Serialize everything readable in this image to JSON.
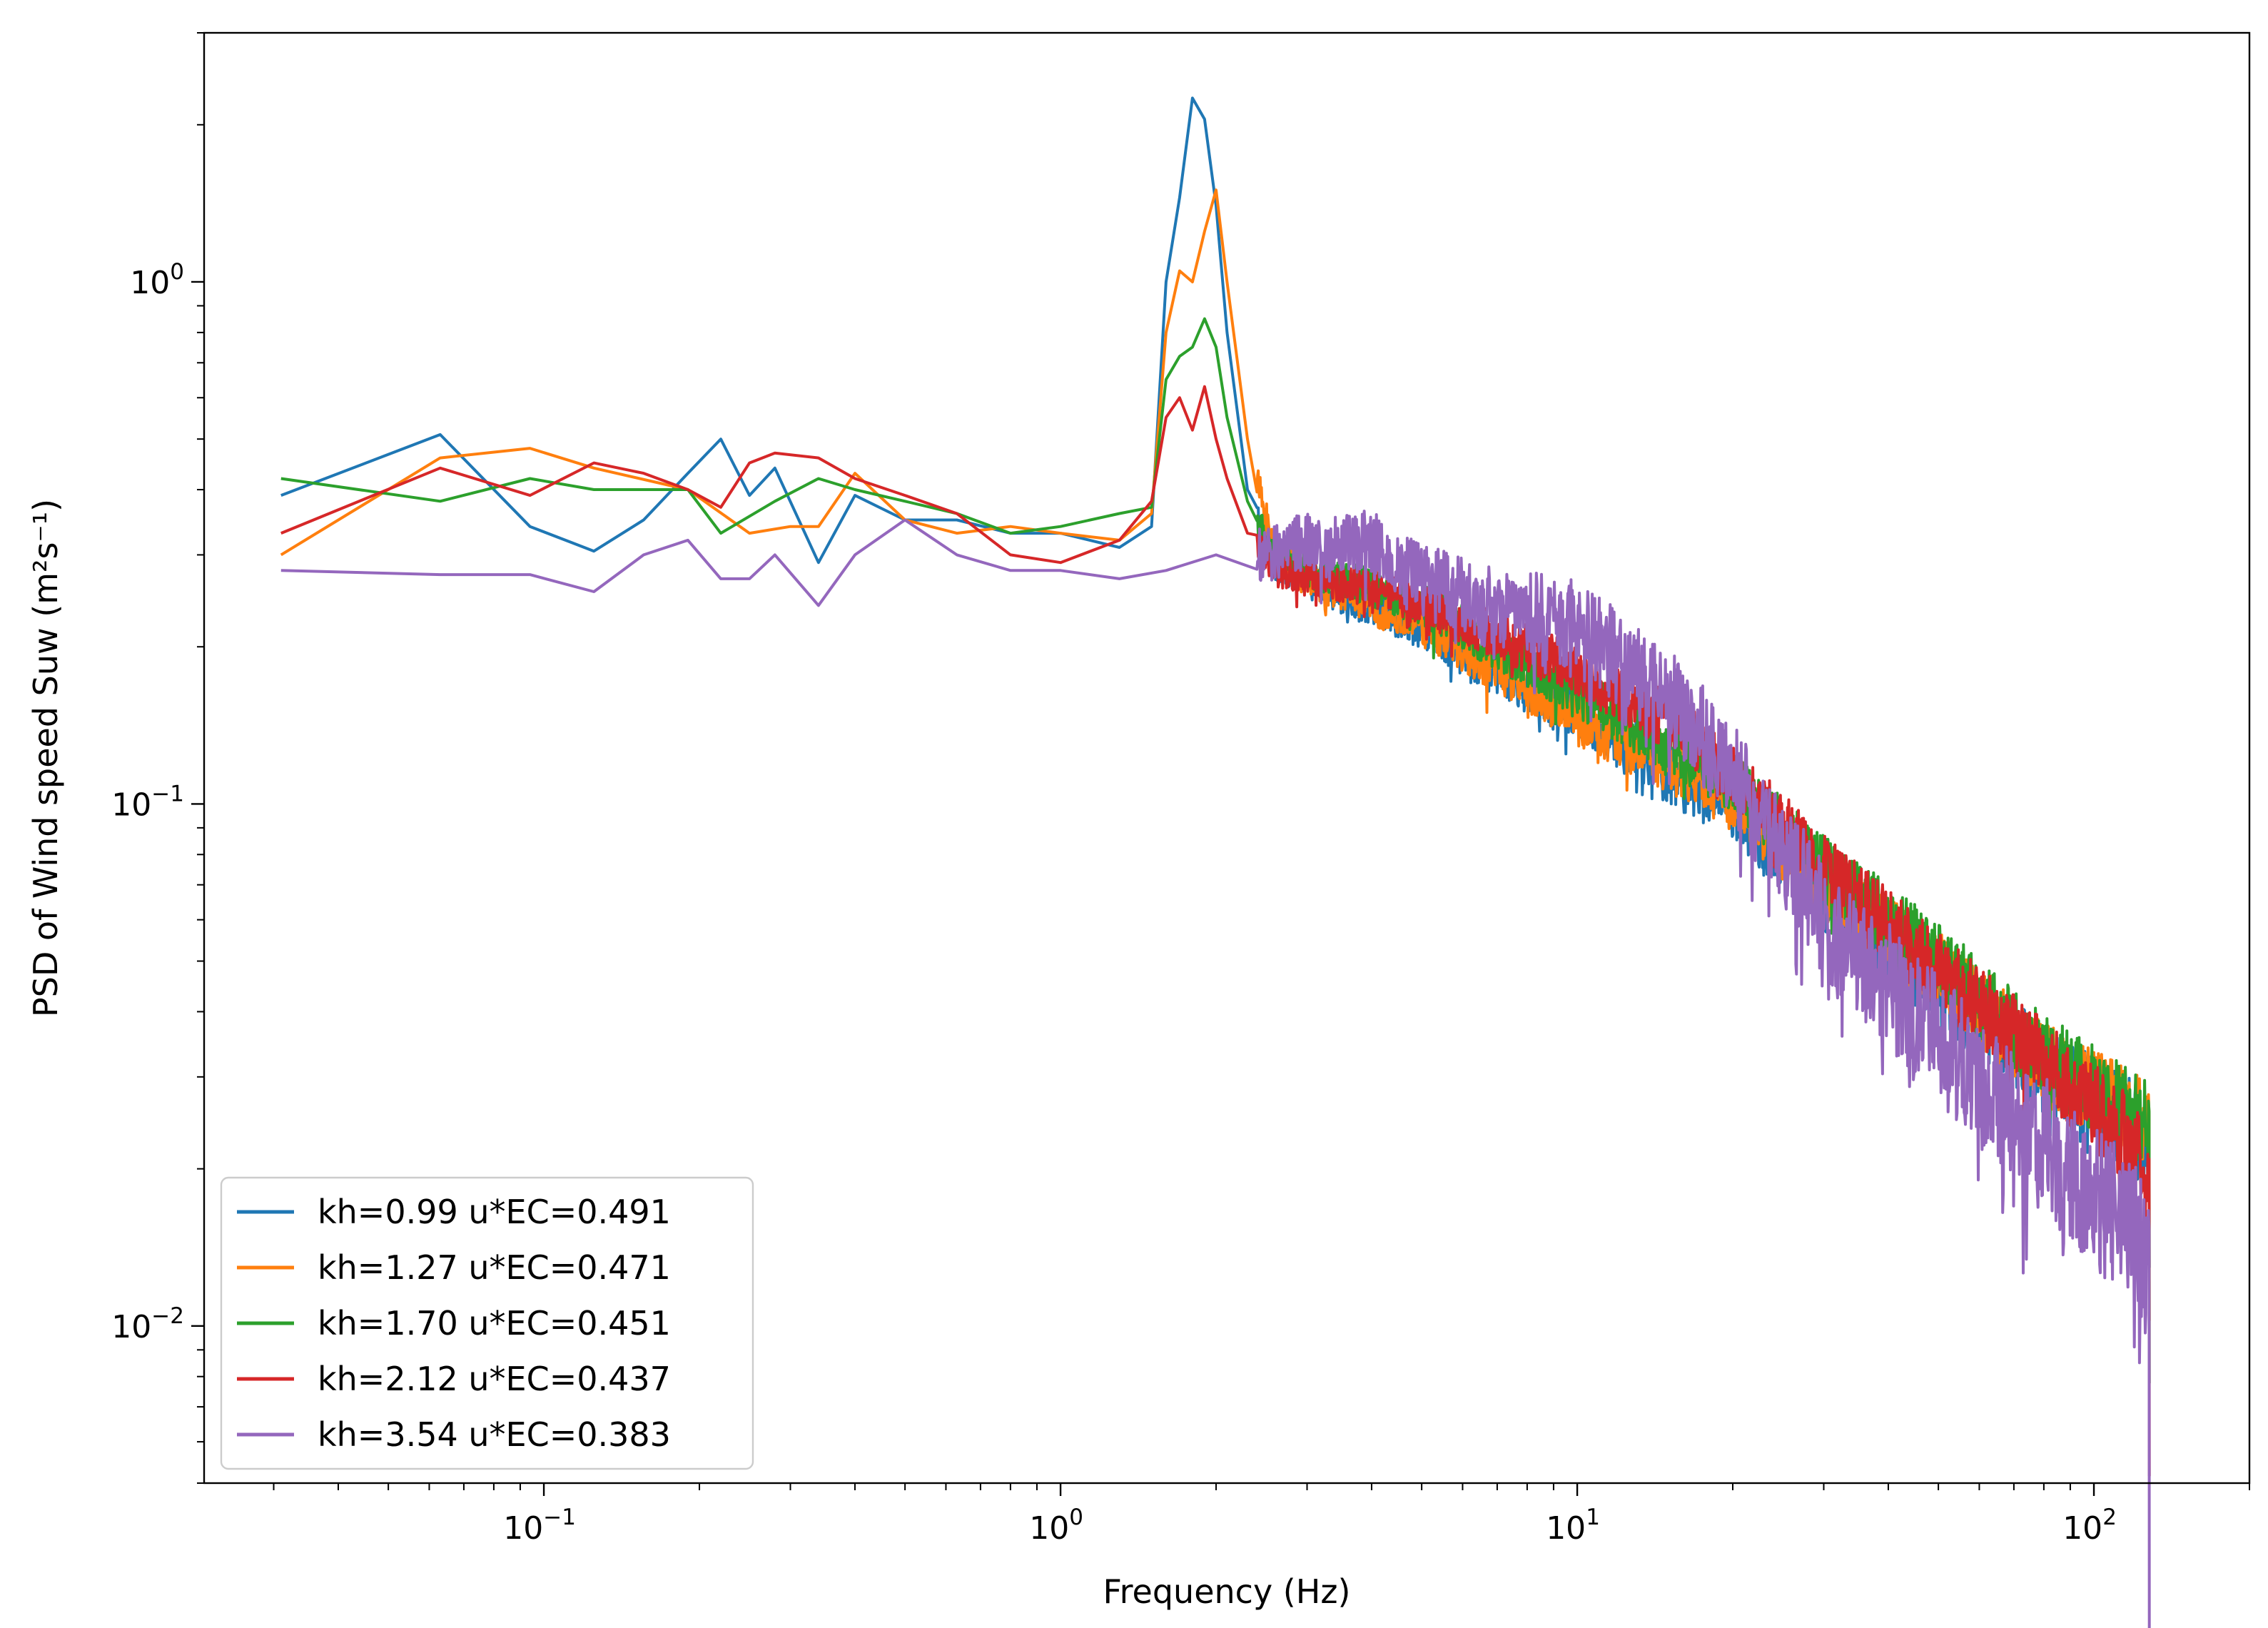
{
  "chart_data": {
    "type": "line",
    "title": "",
    "xlabel": "Frequency (Hz)",
    "ylabel": "PSD of Wind speed Suw (m²s⁻¹)",
    "xscale": "log",
    "yscale": "log",
    "xlim": [
      0.022,
      200
    ],
    "ylim": [
      0.005,
      3.0
    ],
    "grid": false,
    "legend_position": "lower-left",
    "x_ticks": [
      {
        "value": 0.1,
        "mantissa": "10",
        "exponent": "−1"
      },
      {
        "value": 1,
        "mantissa": "10",
        "exponent": "0"
      },
      {
        "value": 10,
        "mantissa": "10",
        "exponent": "1"
      },
      {
        "value": 100,
        "mantissa": "10",
        "exponent": "2"
      }
    ],
    "y_ticks": [
      {
        "value": 0.01,
        "mantissa": "10",
        "exponent": "−2"
      },
      {
        "value": 0.1,
        "mantissa": "10",
        "exponent": "−1"
      },
      {
        "value": 1,
        "mantissa": "10",
        "exponent": "0"
      }
    ],
    "series": [
      {
        "name": "kh=0.99 u*EC=0.491",
        "color": "#1f77b4",
        "points": [
          [
            0.031,
            0.39
          ],
          [
            0.063,
            0.51
          ],
          [
            0.094,
            0.34
          ],
          [
            0.125,
            0.305
          ],
          [
            0.156,
            0.35
          ],
          [
            0.19,
            0.43
          ],
          [
            0.22,
            0.5
          ],
          [
            0.25,
            0.39
          ],
          [
            0.28,
            0.44
          ],
          [
            0.34,
            0.29
          ],
          [
            0.4,
            0.39
          ],
          [
            0.5,
            0.35
          ],
          [
            0.63,
            0.35
          ],
          [
            0.8,
            0.33
          ],
          [
            1.0,
            0.33
          ],
          [
            1.3,
            0.31
          ],
          [
            1.5,
            0.34
          ],
          [
            1.6,
            1.0
          ],
          [
            1.7,
            1.45
          ],
          [
            1.8,
            2.25
          ],
          [
            1.9,
            2.05
          ],
          [
            2.0,
            1.4
          ],
          [
            2.1,
            0.8
          ],
          [
            2.3,
            0.4
          ],
          [
            2.6,
            0.29
          ],
          [
            3.0,
            0.27
          ],
          [
            4.0,
            0.24
          ],
          [
            5.0,
            0.22
          ],
          [
            7.0,
            0.18
          ],
          [
            10.0,
            0.15
          ],
          [
            15.0,
            0.115
          ],
          [
            20.0,
            0.1
          ],
          [
            30.0,
            0.066
          ],
          [
            50.0,
            0.045
          ],
          [
            80.0,
            0.031
          ],
          [
            128.0,
            0.023
          ]
        ],
        "noise": 0.55,
        "drop": 0.05
      },
      {
        "name": "kh=1.27 u*EC=0.471",
        "color": "#ff7f0e",
        "points": [
          [
            0.031,
            0.3
          ],
          [
            0.063,
            0.46
          ],
          [
            0.094,
            0.48
          ],
          [
            0.125,
            0.44
          ],
          [
            0.19,
            0.4
          ],
          [
            0.25,
            0.33
          ],
          [
            0.3,
            0.34
          ],
          [
            0.34,
            0.34
          ],
          [
            0.4,
            0.43
          ],
          [
            0.5,
            0.35
          ],
          [
            0.63,
            0.33
          ],
          [
            0.8,
            0.34
          ],
          [
            1.0,
            0.33
          ],
          [
            1.3,
            0.32
          ],
          [
            1.5,
            0.36
          ],
          [
            1.6,
            0.8
          ],
          [
            1.7,
            1.05
          ],
          [
            1.8,
            1.0
          ],
          [
            1.9,
            1.25
          ],
          [
            2.0,
            1.5
          ],
          [
            2.1,
            1.0
          ],
          [
            2.3,
            0.5
          ],
          [
            2.6,
            0.3
          ],
          [
            3.0,
            0.27
          ],
          [
            4.0,
            0.24
          ],
          [
            5.0,
            0.22
          ],
          [
            7.0,
            0.18
          ],
          [
            10.0,
            0.145
          ],
          [
            15.0,
            0.12
          ],
          [
            20.0,
            0.102
          ],
          [
            30.0,
            0.07
          ],
          [
            50.0,
            0.048
          ],
          [
            80.0,
            0.032
          ],
          [
            128.0,
            0.024
          ]
        ],
        "noise": 0.5,
        "drop": 0.05
      },
      {
        "name": "kh=1.70 u*EC=0.451",
        "color": "#2ca02c",
        "points": [
          [
            0.031,
            0.42
          ],
          [
            0.063,
            0.38
          ],
          [
            0.094,
            0.42
          ],
          [
            0.125,
            0.4
          ],
          [
            0.19,
            0.4
          ],
          [
            0.22,
            0.33
          ],
          [
            0.28,
            0.38
          ],
          [
            0.34,
            0.42
          ],
          [
            0.4,
            0.4
          ],
          [
            0.5,
            0.38
          ],
          [
            0.63,
            0.36
          ],
          [
            0.8,
            0.33
          ],
          [
            1.0,
            0.34
          ],
          [
            1.3,
            0.36
          ],
          [
            1.5,
            0.37
          ],
          [
            1.6,
            0.65
          ],
          [
            1.7,
            0.72
          ],
          [
            1.8,
            0.75
          ],
          [
            1.9,
            0.85
          ],
          [
            2.0,
            0.75
          ],
          [
            2.1,
            0.55
          ],
          [
            2.3,
            0.38
          ],
          [
            2.6,
            0.3
          ],
          [
            3.0,
            0.28
          ],
          [
            4.0,
            0.26
          ],
          [
            5.0,
            0.24
          ],
          [
            7.0,
            0.2
          ],
          [
            10.0,
            0.165
          ],
          [
            15.0,
            0.13
          ],
          [
            20.0,
            0.11
          ],
          [
            30.0,
            0.075
          ],
          [
            50.0,
            0.05
          ],
          [
            80.0,
            0.033
          ],
          [
            128.0,
            0.024
          ]
        ],
        "noise": 0.5,
        "drop": 0.05
      },
      {
        "name": "kh=2.12 u*EC=0.437",
        "color": "#d62728",
        "points": [
          [
            0.031,
            0.33
          ],
          [
            0.063,
            0.44
          ],
          [
            0.094,
            0.39
          ],
          [
            0.125,
            0.45
          ],
          [
            0.156,
            0.43
          ],
          [
            0.19,
            0.4
          ],
          [
            0.22,
            0.37
          ],
          [
            0.25,
            0.45
          ],
          [
            0.28,
            0.47
          ],
          [
            0.34,
            0.46
          ],
          [
            0.4,
            0.42
          ],
          [
            0.5,
            0.39
          ],
          [
            0.63,
            0.36
          ],
          [
            0.8,
            0.3
          ],
          [
            1.0,
            0.29
          ],
          [
            1.3,
            0.32
          ],
          [
            1.5,
            0.38
          ],
          [
            1.6,
            0.55
          ],
          [
            1.7,
            0.6
          ],
          [
            1.8,
            0.52
          ],
          [
            1.9,
            0.63
          ],
          [
            2.0,
            0.5
          ],
          [
            2.1,
            0.42
          ],
          [
            2.3,
            0.33
          ],
          [
            2.6,
            0.28
          ],
          [
            3.0,
            0.27
          ],
          [
            4.0,
            0.26
          ],
          [
            5.0,
            0.24
          ],
          [
            7.0,
            0.21
          ],
          [
            10.0,
            0.18
          ],
          [
            15.0,
            0.145
          ],
          [
            20.0,
            0.115
          ],
          [
            30.0,
            0.075
          ],
          [
            50.0,
            0.048
          ],
          [
            80.0,
            0.032
          ],
          [
            128.0,
            0.021
          ]
        ],
        "noise": 0.5,
        "drop": 0.05
      },
      {
        "name": "kh=3.54 u*EC=0.383",
        "color": "#9467bd",
        "points": [
          [
            0.031,
            0.28
          ],
          [
            0.063,
            0.275
          ],
          [
            0.094,
            0.275
          ],
          [
            0.125,
            0.255
          ],
          [
            0.156,
            0.3
          ],
          [
            0.19,
            0.32
          ],
          [
            0.22,
            0.27
          ],
          [
            0.25,
            0.27
          ],
          [
            0.28,
            0.3
          ],
          [
            0.34,
            0.24
          ],
          [
            0.4,
            0.3
          ],
          [
            0.5,
            0.35
          ],
          [
            0.63,
            0.3
          ],
          [
            0.8,
            0.28
          ],
          [
            1.0,
            0.28
          ],
          [
            1.3,
            0.27
          ],
          [
            1.6,
            0.28
          ],
          [
            2.0,
            0.3
          ],
          [
            2.5,
            0.3
          ],
          [
            3.0,
            0.32
          ],
          [
            4.0,
            0.32
          ],
          [
            5.0,
            0.27
          ],
          [
            7.0,
            0.24
          ],
          [
            10.0,
            0.22
          ],
          [
            15.0,
            0.16
          ],
          [
            20.0,
            0.115
          ],
          [
            30.0,
            0.06
          ],
          [
            50.0,
            0.036
          ],
          [
            80.0,
            0.022
          ],
          [
            128.0,
            0.014
          ]
        ],
        "noise": 0.85,
        "drop": 0.1
      }
    ]
  }
}
